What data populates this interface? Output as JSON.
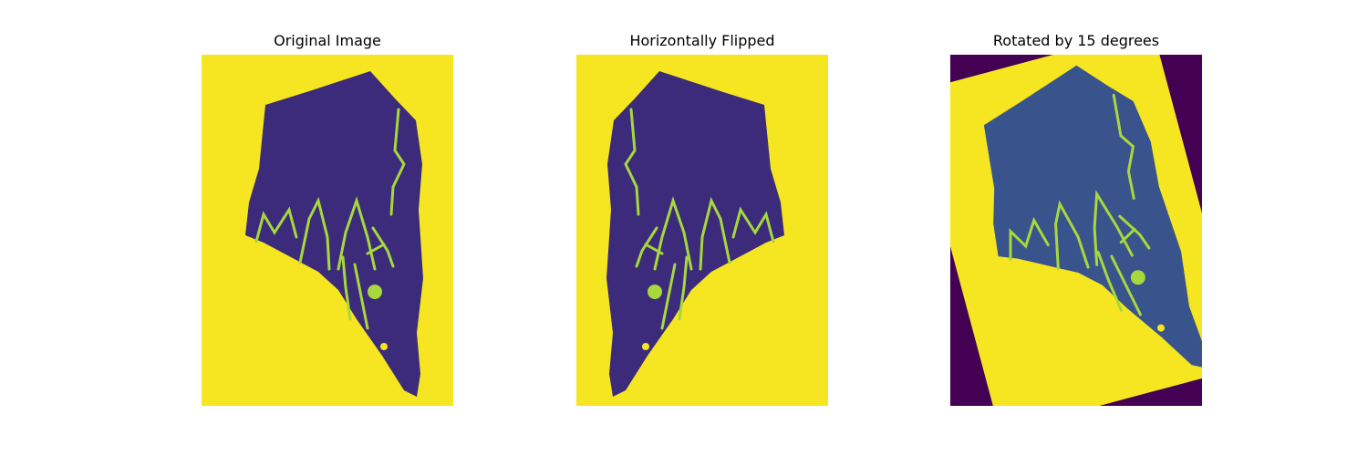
{
  "figure": {
    "panels": [
      {
        "title": "Original Image"
      },
      {
        "title": "Horizontally Flipped"
      },
      {
        "title": "Rotated by 15 degrees"
      }
    ]
  },
  "colors": {
    "background_yellow": "#f5e621",
    "specimen_purple": "#3c2b7a",
    "vein_green": "#a7d83c",
    "rotated_corner_purple": "#440154",
    "rotated_specimen_blue": "#39548c"
  },
  "rotation_degrees": 15
}
